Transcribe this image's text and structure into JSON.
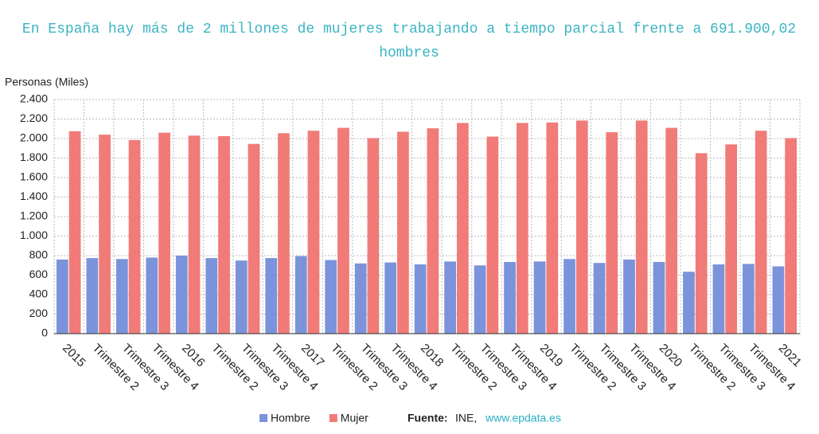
{
  "chart_data": {
    "type": "bar",
    "title": "En España hay más de 2 millones de mujeres trabajando a tiempo parcial frente a 691.900,02 hombres",
    "y_label": "Personas (Miles)",
    "categories": [
      "2015",
      "Trimestre 2",
      "Trimestre 3",
      "Trimestre 4",
      "2016",
      "Trimestre 2",
      "Trimestre 3",
      "Trimestre 4",
      "2017",
      "Trimestre 2",
      "Trimestre 3",
      "Trimestre 4",
      "2018",
      "Trimestre 2",
      "Trimestre 3",
      "Trimestre 4",
      "2019",
      "Trimestre 2",
      "Trimestre 3",
      "Trimestre 4",
      "2020",
      "Trimestre 2",
      "Trimestre 3",
      "Trimestre 4",
      "2021"
    ],
    "series": [
      {
        "name": "Hombre",
        "color": "#7b93db",
        "values": [
          760,
          775,
          765,
          780,
          800,
          775,
          750,
          775,
          795,
          755,
          720,
          730,
          710,
          740,
          700,
          735,
          740,
          765,
          725,
          760,
          735,
          635,
          710,
          715,
          690
        ]
      },
      {
        "name": "Mujer",
        "color": "#f07b78",
        "values": [
          2075,
          2040,
          1985,
          2060,
          2030,
          2025,
          1945,
          2055,
          2080,
          2110,
          2005,
          2070,
          2105,
          2160,
          2020,
          2160,
          2165,
          2185,
          2065,
          2185,
          2110,
          1850,
          1940,
          2080,
          2005
        ]
      }
    ],
    "ylim": [
      0,
      2400
    ],
    "yticks": [
      0,
      200,
      400,
      600,
      800,
      {
        "value": 1000,
        "label": "1.000"
      },
      {
        "value": 1200,
        "label": "1.200"
      },
      {
        "value": 1400,
        "label": "1.400"
      },
      {
        "value": 1600,
        "label": "1.600"
      },
      {
        "value": 1800,
        "label": "1.800"
      },
      {
        "value": 2000,
        "label": "2.000"
      },
      {
        "value": 2200,
        "label": "2.200"
      },
      {
        "value": 2400,
        "label": "2.400"
      }
    ],
    "grid": true,
    "source_label": "Fuente:",
    "source": "INE,",
    "source_link": "www.epdata.es"
  }
}
